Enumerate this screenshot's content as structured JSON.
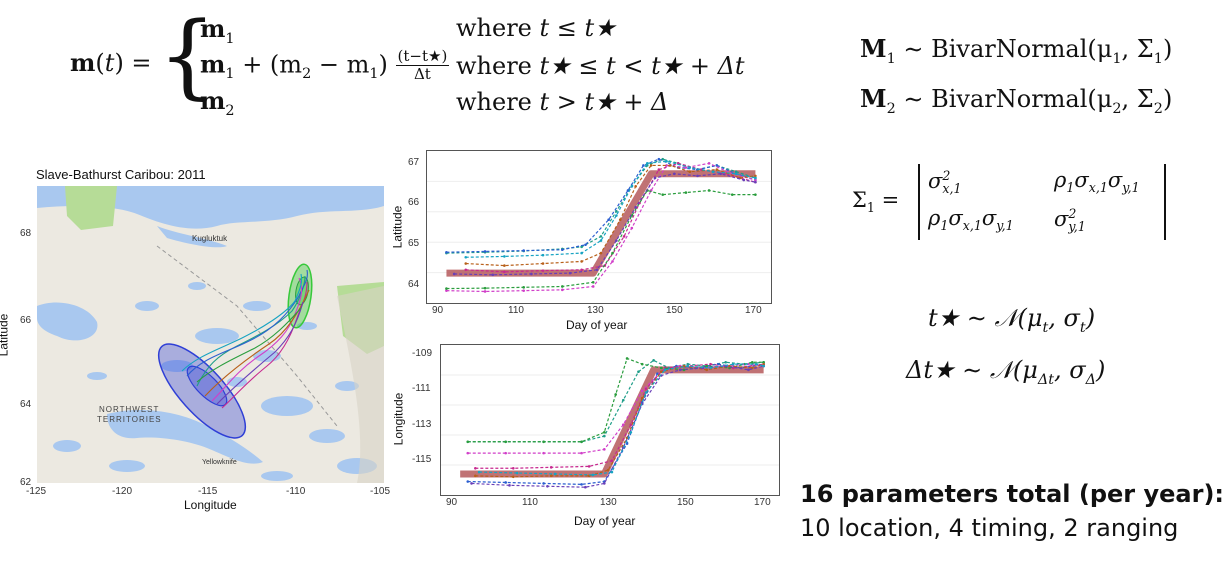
{
  "equation_m": {
    "lhs": "m(t) =",
    "rows": [
      {
        "expr_a": "m",
        "expr_a_sub": "1",
        "cond": "where",
        "cond_expr": "t ≤ t★"
      },
      {
        "expr_a": "m",
        "expr_a_sub": "1",
        "expr_b": " + (m",
        "expr_b_sub": "2",
        "expr_c": " − m",
        "expr_c_sub": "1",
        "expr_d": ")",
        "frac_num": "(t−t★)",
        "frac_den": "Δt",
        "cond": "where",
        "cond_expr": "t★ ≤ t < t★ + Δt"
      },
      {
        "expr_a": "m",
        "expr_a_sub": "2",
        "cond": "where",
        "cond_expr": "t > t★ + Δ"
      }
    ]
  },
  "priors": {
    "M1": {
      "sym": "M",
      "sub": "1",
      "text": " ∼ BivarNormal(μ",
      "mu_sub": "1",
      "text2": ", Σ",
      "sig_sub": "1",
      "close": ")"
    },
    "M2": {
      "sym": "M",
      "sub": "2",
      "text": " ∼ BivarNormal(μ",
      "mu_sub": "2",
      "text2": ", Σ",
      "sig_sub": "2",
      "close": ")"
    },
    "Sigma": {
      "lhs": "Σ",
      "lhs_sub": "1",
      "eq": "=",
      "c11": "σ",
      "c11_sup": "2",
      "c11_sub": "x,1",
      "c12": "ρ",
      "c12_sub": "1",
      "c12_b": "σ",
      "c12_b_sub": "x,1",
      "c12_c": "σ",
      "c12_c_sub": "y,1",
      "c21": "ρ",
      "c21_sub": "1",
      "c21_b": "σ",
      "c21_b_sub": "x,1",
      "c21_c": "σ",
      "c21_c_sub": "y,1",
      "c22": "σ",
      "c22_sup": "2",
      "c22_sub": "y,1"
    },
    "tstar": {
      "lhs": "t★ ∼ 𝒩(μ",
      "mu_sub": "t",
      "mid": ", σ",
      "sig_sub": "t",
      "close": ")"
    },
    "dt": {
      "lhs": "Δt★ ∼ 𝒩(μ",
      "mu_sub": "Δt",
      "mid": ", σ",
      "sig_sub": "Δ",
      "close": ")"
    }
  },
  "map": {
    "title": "Slave-Bathurst Caribou: 2011",
    "xlabel": "Longitude",
    "ylabel": "Latitude",
    "xticks": [
      "-125",
      "-120",
      "-115",
      "-110",
      "-105"
    ],
    "yticks": [
      "68",
      "66",
      "64",
      "62"
    ],
    "places": [
      "Kugluktuk",
      "NORTHWEST",
      "TERRITORIES",
      "Yellowknife"
    ],
    "colors": {
      "water": "#a9c8ef",
      "land": "#ece9e1",
      "park": "#b6dc97",
      "blue_ellipse": "#2f3fd6",
      "green_ellipse": "#37c93a"
    }
  },
  "plot_lat": {
    "ylabel": "Latitude",
    "xlabel": "Day of year",
    "xticks": [
      "90",
      "110",
      "130",
      "150",
      "170"
    ],
    "yticks": [
      "67",
      "66",
      "65",
      "64"
    ]
  },
  "plot_lon": {
    "ylabel": "Longitude",
    "xlabel": "Day of year",
    "xticks": [
      "90",
      "110",
      "130",
      "150",
      "170"
    ],
    "yticks": [
      "-109",
      "-111",
      "-113",
      "-115"
    ]
  },
  "chart_data": [
    {
      "type": "line",
      "xlabel": "Day of year",
      "ylabel": "Latitude",
      "xlim": [
        86,
        173
      ],
      "ylim": [
        63.7,
        67.15
      ],
      "fitted": {
        "x": [
          90,
          128,
          143,
          170
        ],
        "y": [
          64.32,
          64.32,
          66.7,
          66.7
        ],
        "color": "#b5595c"
      },
      "series": [
        {
          "color": "#1f9e89",
          "x": [
            90,
            100,
            110,
            120,
            125,
            130,
            134,
            138,
            142,
            146,
            150,
            155,
            160,
            165,
            170
          ],
          "y": [
            64.8,
            64.82,
            64.85,
            64.9,
            64.95,
            65.2,
            65.8,
            66.4,
            66.9,
            67.05,
            66.95,
            66.8,
            66.9,
            66.75,
            66.6
          ]
        },
        {
          "color": "#2c5fd0",
          "x": [
            90,
            100,
            110,
            120,
            126,
            132,
            137,
            141,
            145,
            150,
            155,
            160,
            165,
            170
          ],
          "y": [
            64.82,
            64.84,
            64.86,
            64.88,
            65.0,
            65.6,
            66.3,
            66.9,
            67.05,
            66.85,
            66.8,
            66.9,
            66.7,
            66.55
          ]
        },
        {
          "color": "#d13fc9",
          "x": [
            90,
            100,
            110,
            120,
            128,
            133,
            138,
            143,
            147,
            152,
            158,
            164,
            170
          ],
          "y": [
            63.9,
            63.88,
            63.9,
            63.92,
            64.0,
            64.6,
            65.4,
            66.3,
            66.9,
            66.85,
            66.95,
            66.7,
            66.55
          ]
        },
        {
          "color": "#c7298f",
          "x": [
            95,
            105,
            115,
            125,
            131,
            136,
            140,
            145,
            150,
            156,
            162,
            170
          ],
          "y": [
            64.4,
            64.35,
            64.38,
            64.4,
            64.5,
            65.2,
            66.0,
            66.8,
            66.95,
            66.8,
            66.7,
            66.5
          ]
        },
        {
          "color": "#2a9d3d",
          "x": [
            90,
            100,
            110,
            120,
            128,
            133,
            138,
            142,
            146,
            152,
            158,
            164,
            170
          ],
          "y": [
            63.95,
            63.96,
            63.98,
            64.0,
            64.1,
            64.8,
            65.7,
            66.3,
            66.2,
            66.25,
            66.3,
            66.2,
            66.2
          ]
        },
        {
          "color": "#b8601a",
          "x": [
            95,
            105,
            115,
            125,
            130,
            135,
            139,
            143,
            148,
            153,
            160,
            166,
            170
          ],
          "y": [
            64.55,
            64.5,
            64.55,
            64.6,
            64.8,
            65.6,
            66.4,
            66.9,
            66.9,
            66.75,
            66.8,
            66.6,
            66.65
          ]
        },
        {
          "color": "#6a3fb8",
          "x": [
            92,
            102,
            112,
            122,
            129,
            134,
            139,
            144,
            149,
            155,
            161,
            167,
            170
          ],
          "y": [
            64.3,
            64.28,
            64.3,
            64.32,
            64.4,
            65.1,
            65.9,
            66.6,
            66.7,
            66.65,
            66.7,
            66.55,
            66.5
          ]
        },
        {
          "color": "#17a3c2",
          "x": [
            95,
            105,
            115,
            125,
            130,
            134,
            138,
            142,
            147,
            153,
            159,
            165,
            170
          ],
          "y": [
            64.7,
            64.72,
            64.75,
            64.8,
            65.1,
            65.7,
            66.4,
            66.95,
            67.0,
            66.85,
            66.75,
            66.7,
            66.6
          ]
        }
      ]
    },
    {
      "type": "line",
      "xlabel": "Day of year",
      "ylabel": "Longitude",
      "xlim": [
        86,
        173
      ],
      "ylim": [
        -116.3,
        -108.8
      ],
      "fitted": {
        "x": [
          90,
          128,
          141,
          170
        ],
        "y": [
          -115.4,
          -115.4,
          -109.9,
          -109.9
        ],
        "color": "#b5595c"
      },
      "series": [
        {
          "color": "#1f9e89",
          "x": [
            92,
            102,
            112,
            122,
            128,
            133,
            137,
            141,
            145,
            150,
            155,
            160,
            165,
            170
          ],
          "y": [
            -113.7,
            -113.7,
            -113.7,
            -113.7,
            -113.4,
            -111.5,
            -110.0,
            -109.4,
            -109.8,
            -109.6,
            -109.7,
            -109.5,
            -109.6,
            -109.5
          ]
        },
        {
          "color": "#2c5fd0",
          "x": [
            92,
            102,
            112,
            122,
            128,
            134,
            138,
            142,
            147,
            152,
            158,
            164,
            170
          ],
          "y": [
            -115.8,
            -115.85,
            -115.9,
            -115.95,
            -115.8,
            -113.8,
            -111.6,
            -110.1,
            -109.7,
            -109.8,
            -109.6,
            -109.8,
            -109.6
          ]
        },
        {
          "color": "#d13fc9",
          "x": [
            92,
            102,
            112,
            122,
            128,
            133,
            138,
            143,
            148,
            154,
            160,
            166,
            170
          ],
          "y": [
            -114.3,
            -114.3,
            -114.3,
            -114.3,
            -114.1,
            -112.8,
            -111.0,
            -110.0,
            -109.7,
            -109.8,
            -109.7,
            -109.6,
            -109.7
          ]
        },
        {
          "color": "#c7298f",
          "x": [
            94,
            104,
            114,
            124,
            130,
            135,
            139,
            144,
            150,
            156,
            162,
            170
          ],
          "y": [
            -115.1,
            -115.1,
            -115.05,
            -115.0,
            -114.7,
            -112.8,
            -110.9,
            -109.8,
            -109.7,
            -109.6,
            -109.8,
            -109.6
          ]
        },
        {
          "color": "#2a9d3d",
          "x": [
            92,
            102,
            112,
            122,
            128,
            131,
            134,
            138,
            143,
            149,
            155,
            161,
            167,
            170
          ],
          "y": [
            -113.7,
            -113.7,
            -113.7,
            -113.7,
            -113.2,
            -111.2,
            -109.3,
            -109.6,
            -109.8,
            -109.9,
            -109.7,
            -109.8,
            -109.5,
            -109.5
          ]
        },
        {
          "color": "#b8601a",
          "x": [
            94,
            104,
            114,
            124,
            129,
            134,
            138,
            143,
            149,
            155,
            161,
            167,
            170
          ],
          "y": [
            -115.5,
            -115.55,
            -115.5,
            -115.5,
            -115.2,
            -113.5,
            -111.4,
            -110.0,
            -109.7,
            -109.9,
            -109.7,
            -109.8,
            -109.6
          ]
        },
        {
          "color": "#6a3fb8",
          "x": [
            93,
            103,
            113,
            123,
            128,
            133,
            138,
            143,
            148,
            154,
            160,
            166,
            170
          ],
          "y": [
            -115.9,
            -116.0,
            -116.05,
            -116.1,
            -115.9,
            -114.0,
            -111.7,
            -110.2,
            -109.9,
            -109.8,
            -109.7,
            -109.9,
            -109.7
          ]
        },
        {
          "color": "#17a3c2",
          "x": [
            95,
            105,
            115,
            125,
            130,
            135,
            139,
            144,
            150,
            156,
            162,
            168,
            170
          ],
          "y": [
            -115.3,
            -115.35,
            -115.4,
            -115.45,
            -115.3,
            -113.2,
            -111.1,
            -109.9,
            -109.7,
            -109.8,
            -109.6,
            -109.6,
            -109.7
          ]
        }
      ]
    }
  ],
  "summary": {
    "title": "16 parameters total (per year):",
    "detail": "10 location, 4 timing, 2 ranging"
  }
}
